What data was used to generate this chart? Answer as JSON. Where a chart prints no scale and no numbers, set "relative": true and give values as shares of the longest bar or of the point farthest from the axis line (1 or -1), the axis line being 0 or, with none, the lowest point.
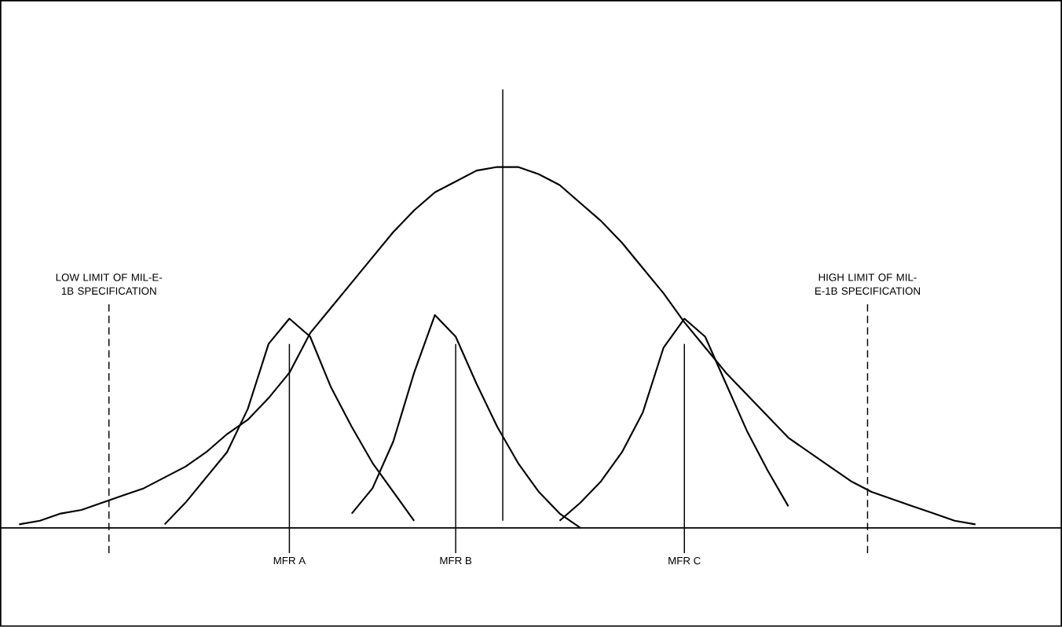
{
  "chart_data": {
    "type": "line",
    "relative": true,
    "tick_labels": "x",
    "categories": [
      null,
      null,
      null,
      null,
      null,
      null,
      null,
      null,
      null,
      null,
      null,
      null,
      null,
      "MFR  A",
      null,
      null,
      null,
      null,
      null,
      null,
      null,
      "MFR B",
      null,
      null,
      null,
      null,
      null,
      null,
      null,
      null,
      null,
      null,
      "MFR C",
      null,
      null,
      null,
      null,
      null,
      null,
      null,
      null,
      null,
      null,
      null,
      null,
      null,
      null,
      null,
      null,
      null
    ],
    "series": [
      {
        "color": "#000000",
        "values": [
          0.01,
          0.02,
          0.04,
          0.05,
          0.07,
          0.09,
          0.11,
          0.14,
          0.17,
          0.21,
          0.26,
          0.3,
          0.36,
          0.43,
          0.54,
          0.61,
          0.68,
          0.75,
          0.82,
          0.88,
          0.93,
          0.96,
          0.99,
          1.0,
          1.0,
          0.98,
          0.95,
          0.9,
          0.85,
          0.79,
          0.72,
          0.65,
          0.57,
          0.5,
          0.43,
          0.37,
          0.31,
          0.25,
          0.21,
          0.17,
          0.13,
          0.1,
          0.08,
          0.06,
          0.04,
          0.02,
          0.01,
          null,
          null,
          null
        ]
      },
      {
        "color": "#000000",
        "values": [
          null,
          null,
          null,
          null,
          null,
          null,
          null,
          0.01,
          0.07,
          0.14,
          0.21,
          0.33,
          0.51,
          0.58,
          0.53,
          0.39,
          0.28,
          0.18,
          0.1,
          0.02,
          null,
          null,
          null,
          null,
          null,
          null,
          null,
          null,
          null,
          null,
          null,
          null,
          null,
          null,
          null,
          null,
          null,
          null,
          null,
          null,
          null,
          null,
          null,
          null,
          null,
          null,
          null,
          null,
          null,
          null
        ]
      },
      {
        "color": "#000000",
        "values": [
          null,
          null,
          null,
          null,
          null,
          null,
          null,
          null,
          null,
          null,
          null,
          null,
          null,
          null,
          null,
          null,
          0.04,
          0.11,
          0.24,
          0.43,
          0.59,
          0.53,
          0.4,
          0.28,
          0.18,
          0.1,
          0.04,
          0.0,
          null,
          null,
          null,
          null,
          null,
          null,
          null,
          null,
          null,
          null,
          null,
          null,
          null,
          null,
          null,
          null,
          null,
          null,
          null,
          null,
          null,
          null
        ]
      },
      {
        "color": "#000000",
        "values": [
          null,
          null,
          null,
          null,
          null,
          null,
          null,
          null,
          null,
          null,
          null,
          null,
          null,
          null,
          null,
          null,
          null,
          null,
          null,
          null,
          null,
          null,
          null,
          null,
          null,
          null,
          0.02,
          0.07,
          0.13,
          0.21,
          0.32,
          0.5,
          0.58,
          0.53,
          0.4,
          0.27,
          0.16,
          0.06,
          null,
          null,
          null,
          null,
          null,
          null,
          null,
          null,
          null,
          null,
          null,
          null
        ]
      }
    ],
    "ref_lines": [
      {
        "axis": "x",
        "value": "MFR  A",
        "color": "#000000"
      },
      {
        "axis": "x",
        "value": "MFR B",
        "color": "#000000"
      },
      {
        "axis": "x",
        "value": "MFR C",
        "color": "#000000"
      }
    ],
    "annotations": [
      "LOW LIMIT OF MIL-E-1B SPECIFICATION",
      "HIGH LIMIT OF MIL-E-1B SPECIFICATION"
    ]
  }
}
